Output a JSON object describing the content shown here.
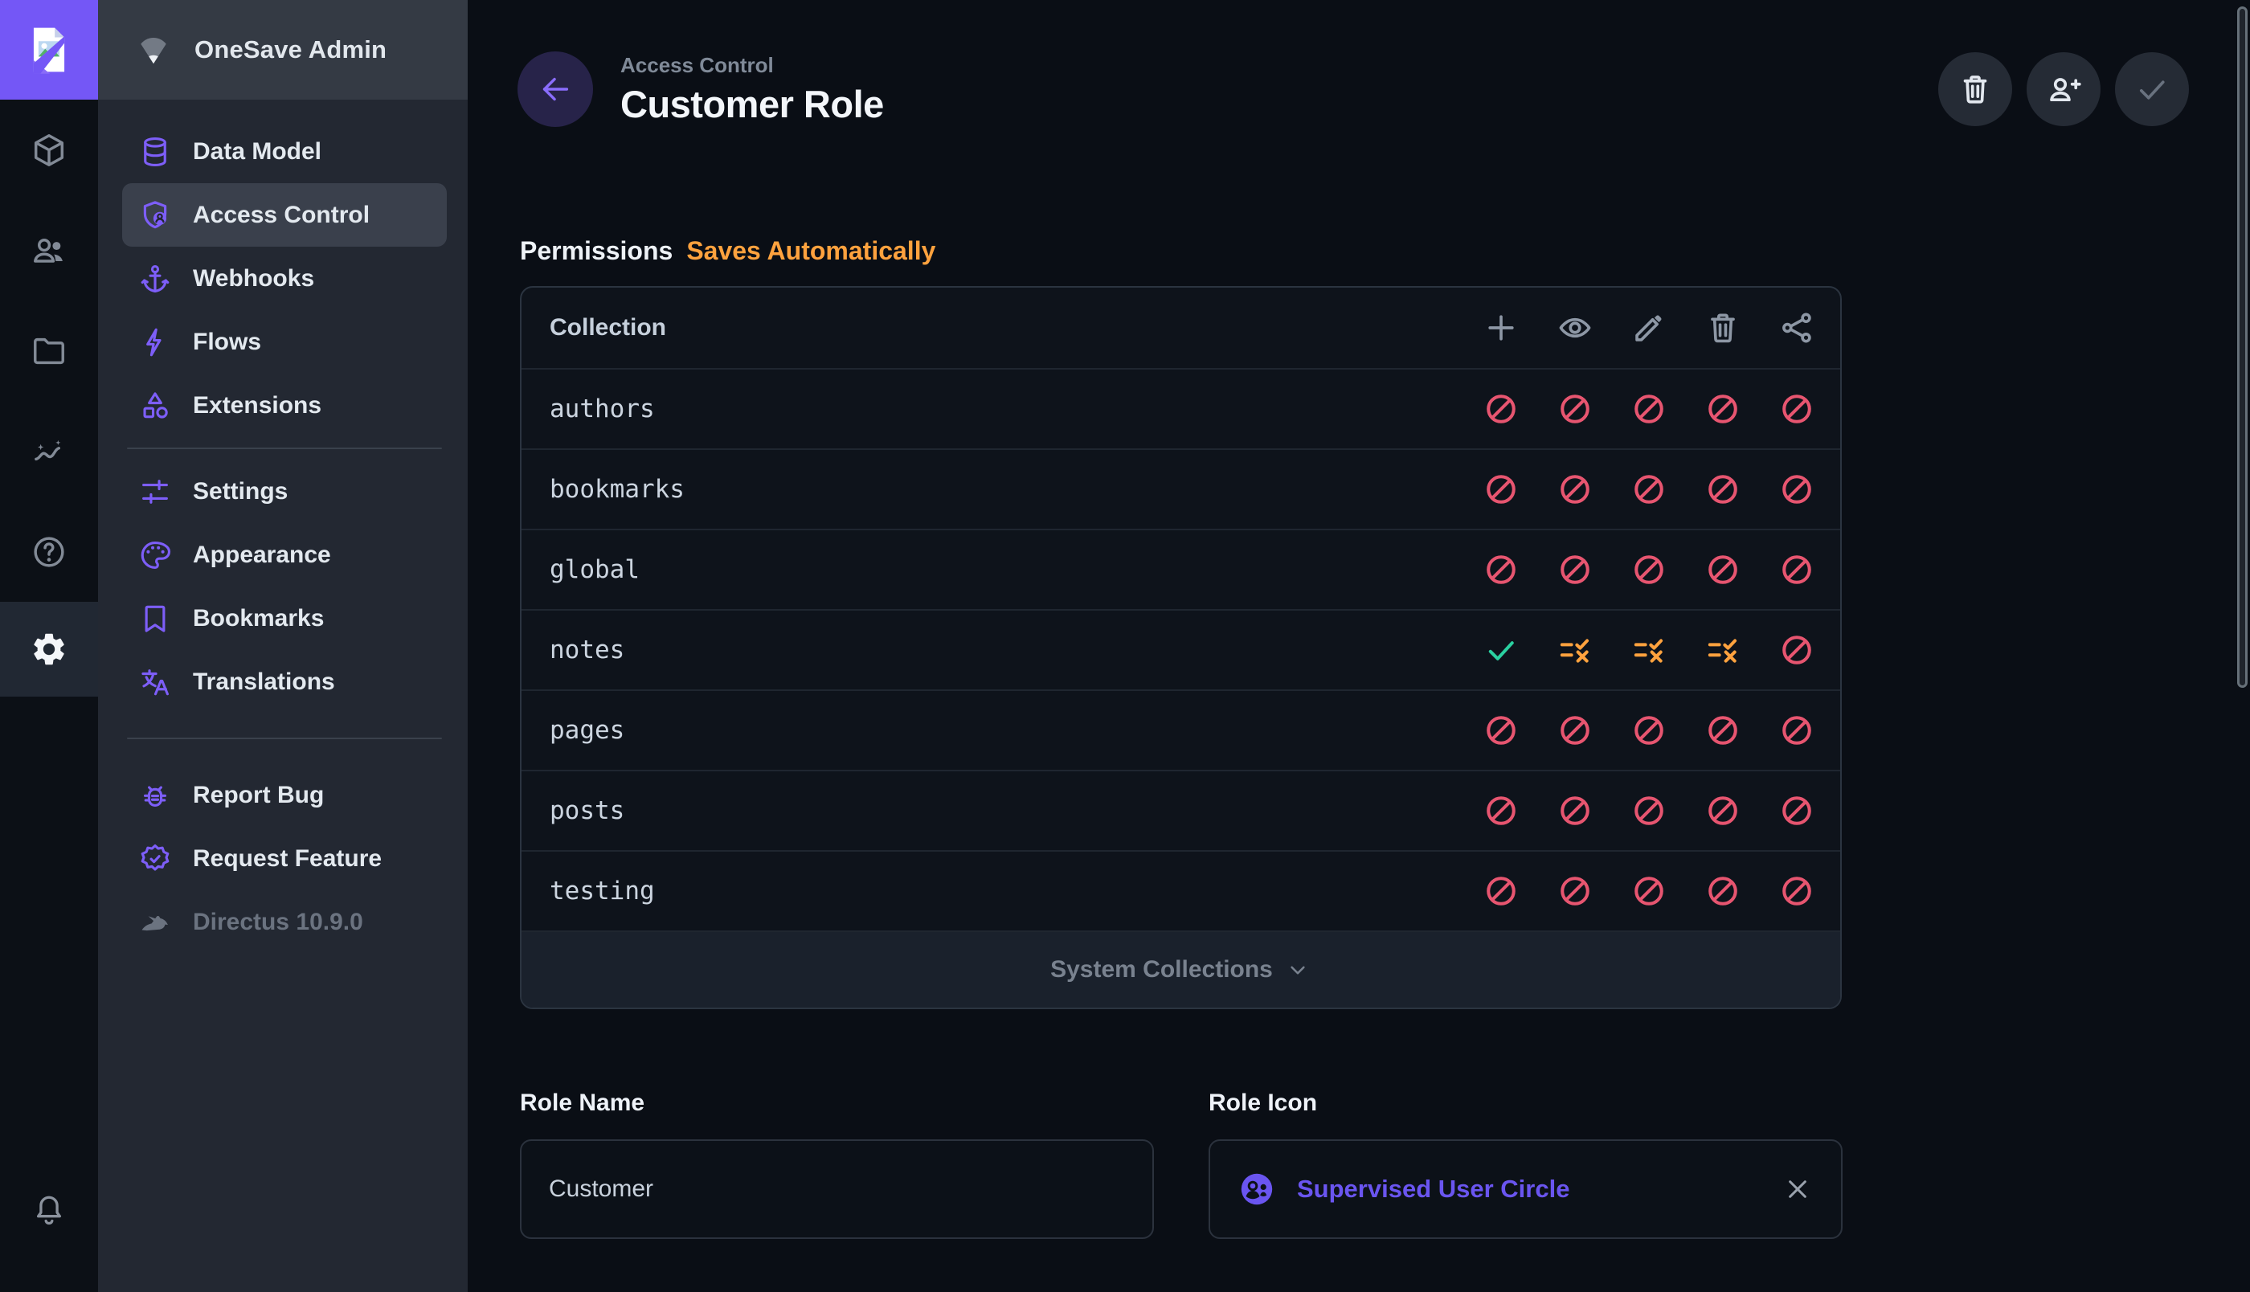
{
  "app": {
    "logo_icon": "broken-image"
  },
  "module_bar": {
    "modules": [
      {
        "name": "content",
        "icon": "box"
      },
      {
        "name": "users",
        "icon": "users"
      },
      {
        "name": "files",
        "icon": "folder"
      },
      {
        "name": "insights",
        "icon": "insights"
      },
      {
        "name": "docs",
        "icon": "help"
      }
    ],
    "settings": {
      "name": "settings",
      "icon": "gear",
      "active": true
    },
    "notifications": {
      "name": "notifications",
      "icon": "bell"
    }
  },
  "sidebar": {
    "title": "OneSave Admin",
    "title_icon": "signal-wedge",
    "sections": [
      [
        {
          "label": "Data Model",
          "icon": "database"
        },
        {
          "label": "Access Control",
          "icon": "shield-user",
          "active": true
        },
        {
          "label": "Webhooks",
          "icon": "anchor"
        },
        {
          "label": "Flows",
          "icon": "bolt"
        },
        {
          "label": "Extensions",
          "icon": "shapes"
        }
      ],
      [
        {
          "label": "Settings",
          "icon": "tune"
        },
        {
          "label": "Appearance",
          "icon": "palette"
        },
        {
          "label": "Bookmarks",
          "icon": "bookmark"
        },
        {
          "label": "Translations",
          "icon": "translate"
        }
      ],
      [
        {
          "label": "Report Bug",
          "icon": "bug"
        },
        {
          "label": "Request Feature",
          "icon": "verified"
        },
        {
          "label": "Directus 10.9.0",
          "icon": "rabbit",
          "muted": true
        }
      ]
    ]
  },
  "header": {
    "breadcrumb": "Access Control",
    "title": "Customer Role",
    "back_icon": "arrow-left",
    "actions": [
      {
        "name": "delete-role",
        "icon": "trash"
      },
      {
        "name": "invite-user",
        "icon": "user-add"
      },
      {
        "name": "save",
        "icon": "check",
        "disabled": true
      }
    ]
  },
  "permissions": {
    "heading": "Permissions",
    "note": "Saves Automatically",
    "table": {
      "column_header": "Collection",
      "action_columns": [
        "create",
        "read",
        "update",
        "delete",
        "share"
      ],
      "action_icons": [
        "plus",
        "eye",
        "pencil",
        "trash",
        "share"
      ],
      "rows": [
        {
          "collection": "authors",
          "states": [
            "none",
            "none",
            "none",
            "none",
            "none"
          ]
        },
        {
          "collection": "bookmarks",
          "states": [
            "none",
            "none",
            "none",
            "none",
            "none"
          ]
        },
        {
          "collection": "global",
          "states": [
            "none",
            "none",
            "none",
            "none",
            "none"
          ]
        },
        {
          "collection": "notes",
          "states": [
            "full",
            "custom",
            "custom",
            "custom",
            "none"
          ]
        },
        {
          "collection": "pages",
          "states": [
            "none",
            "none",
            "none",
            "none",
            "none"
          ]
        },
        {
          "collection": "posts",
          "states": [
            "none",
            "none",
            "none",
            "none",
            "none"
          ]
        },
        {
          "collection": "testing",
          "states": [
            "none",
            "none",
            "none",
            "none",
            "none"
          ]
        }
      ],
      "footer": {
        "label": "System Collections",
        "icon": "chevron-down"
      }
    }
  },
  "fields": {
    "role_name": {
      "label": "Role Name",
      "value": "Customer"
    },
    "role_icon": {
      "label": "Role Icon",
      "value": "Supervised User Circle",
      "icon": "supervised-user-circle",
      "clear_icon": "close"
    }
  },
  "colors": {
    "accent_purple": "#7d5ef8",
    "link_purple": "#6a55f0",
    "orange": "#ffa23e",
    "red": "#e75570",
    "green": "#2ad0a0"
  }
}
